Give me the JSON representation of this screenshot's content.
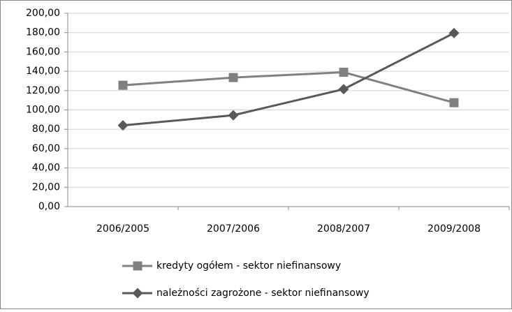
{
  "chart_data": {
    "type": "line",
    "categories": [
      "2006/2005",
      "2007/2006",
      "2008/2007",
      "2009/2008"
    ],
    "series": [
      {
        "name": "kredyty ogółem - sektor niefinansowy",
        "color": "#808080",
        "marker": "square",
        "values": [
          125.5,
          133.5,
          139,
          107.5
        ]
      },
      {
        "name": "należności zagrożone - sektor niefinansowy",
        "color": "#595959",
        "marker": "diamond",
        "values": [
          84,
          94.5,
          121.5,
          179.5
        ]
      }
    ],
    "ylim": [
      0,
      200
    ],
    "yticks": [
      {
        "value": 0,
        "label": "0,00"
      },
      {
        "value": 20,
        "label": "20,00"
      },
      {
        "value": 40,
        "label": "40,00"
      },
      {
        "value": 60,
        "label": "60,00"
      },
      {
        "value": 80,
        "label": "80,00"
      },
      {
        "value": 100,
        "label": "100,00"
      },
      {
        "value": 120,
        "label": "120,00"
      },
      {
        "value": 140,
        "label": "140,00"
      },
      {
        "value": 160,
        "label": "160,00"
      },
      {
        "value": 180,
        "label": "180,00"
      },
      {
        "value": 200,
        "label": "200,00"
      }
    ],
    "grid": true
  }
}
